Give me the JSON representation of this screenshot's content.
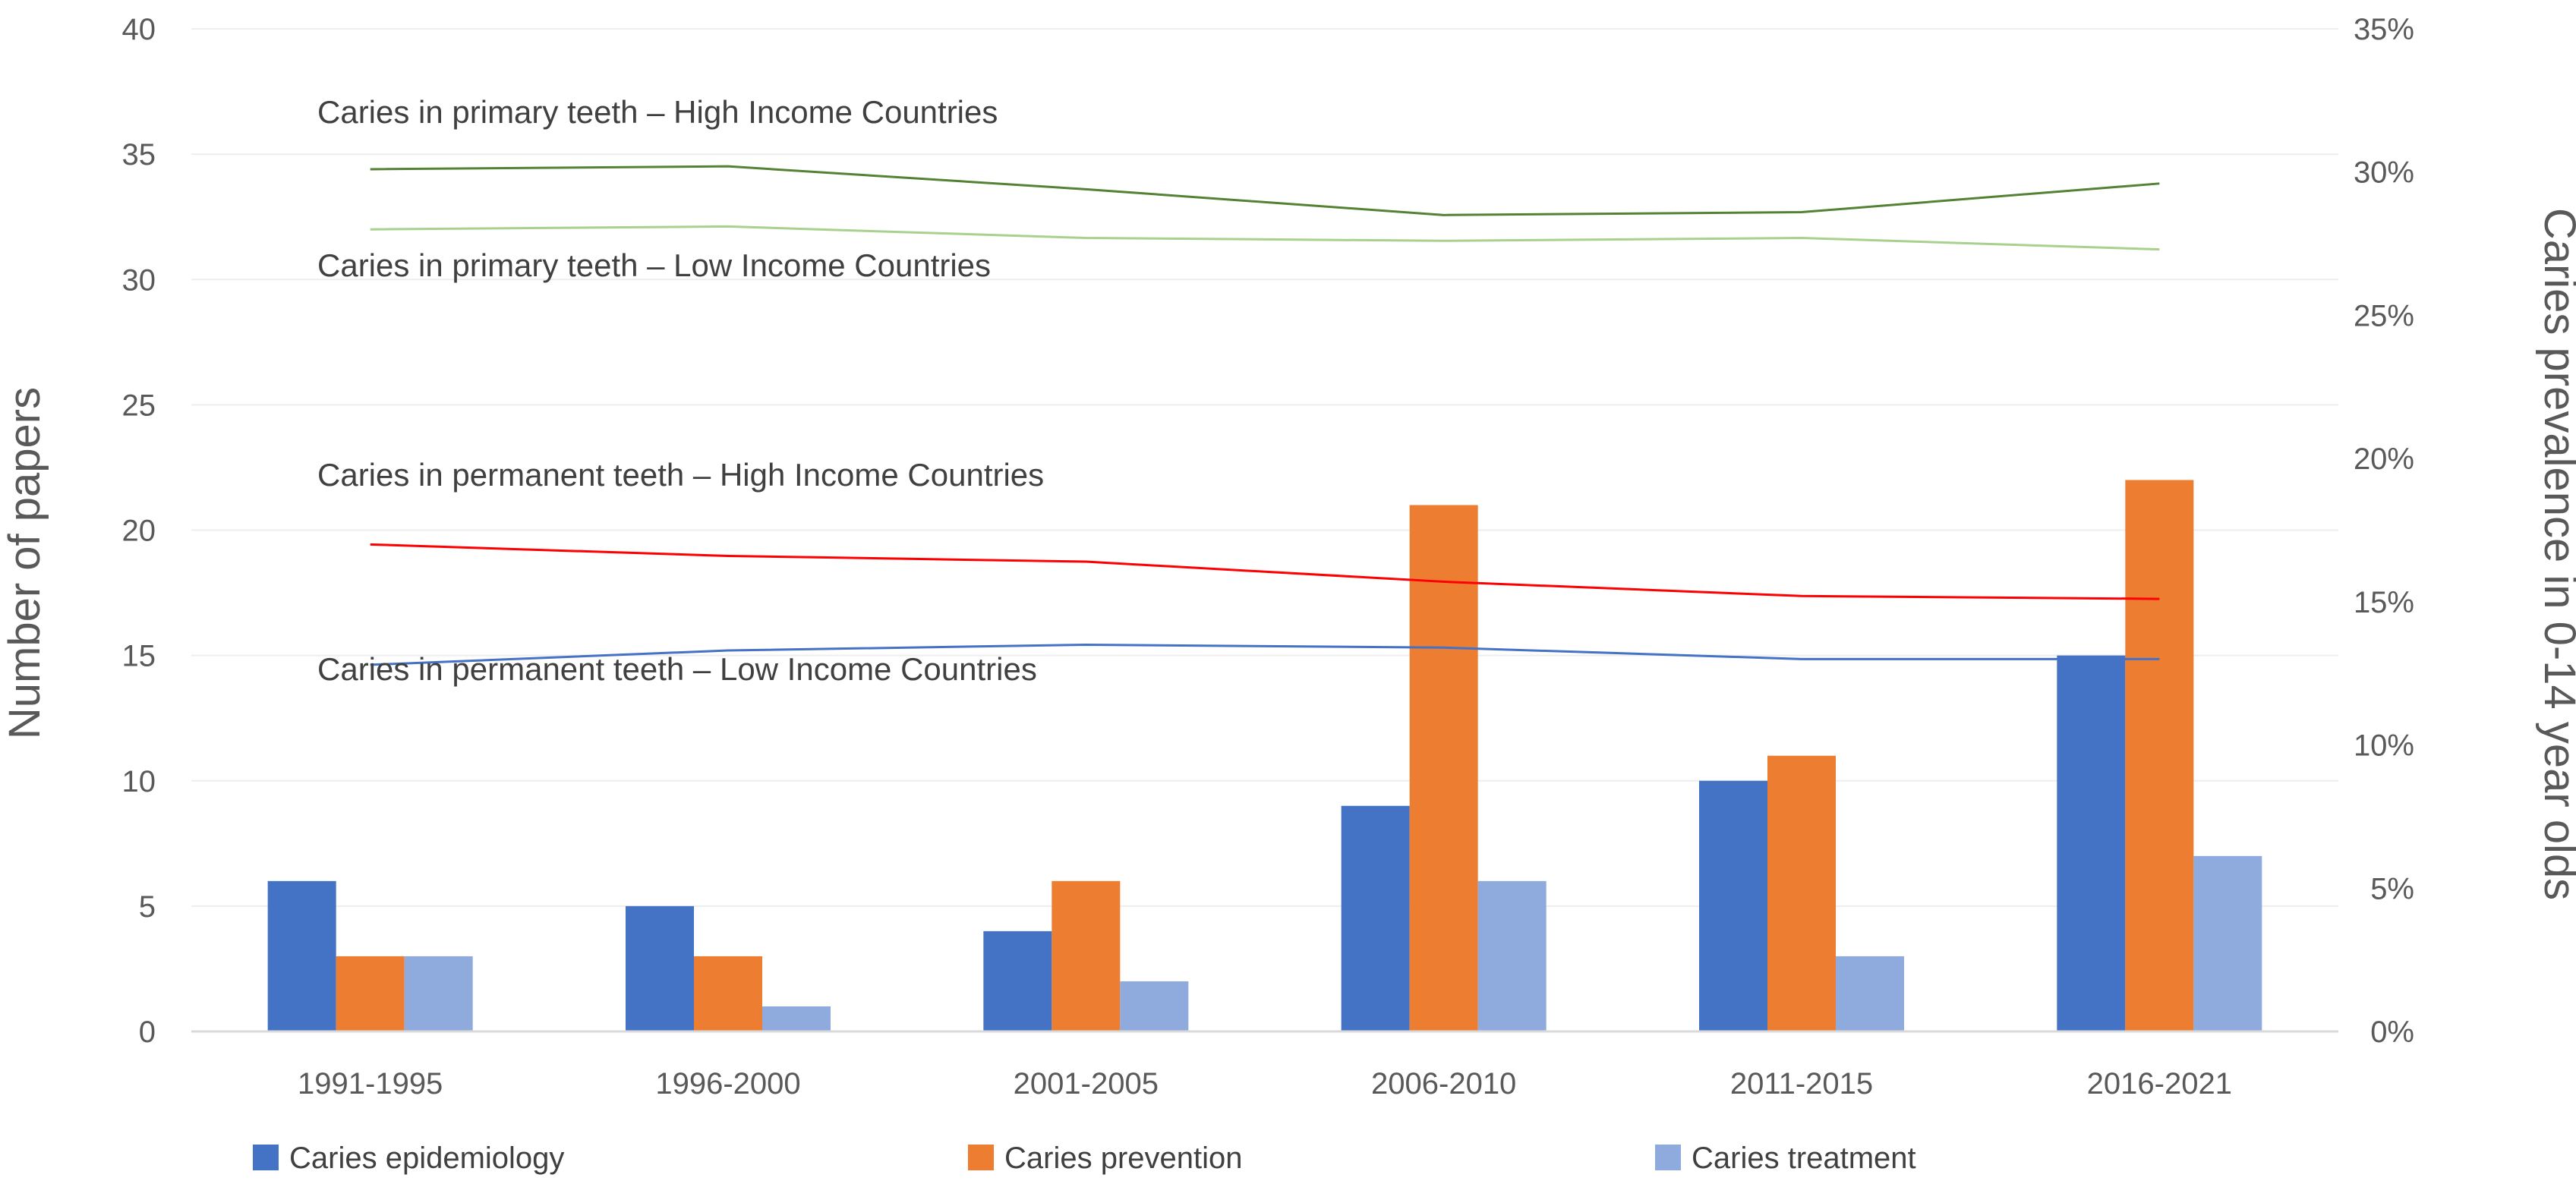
{
  "chart_data": {
    "type": "bar",
    "categories": [
      "1991-1995",
      "1996-2000",
      "2001-2005",
      "2006-2010",
      "2011-2015",
      "2016-2021"
    ],
    "series": [
      {
        "name": "Caries epidemiology",
        "values": [
          6,
          5,
          4,
          9,
          10,
          15
        ],
        "color": "#4472C4"
      },
      {
        "name": "Caries prevention",
        "values": [
          3,
          3,
          6,
          21,
          11,
          22
        ],
        "color": "#ED7D31"
      },
      {
        "name": "Caries treatment",
        "values": [
          3,
          1,
          2,
          6,
          3,
          7
        ],
        "color": "#8FAADC"
      }
    ],
    "lines": [
      {
        "name": "Caries in primary teeth – High Income Countries",
        "values": [
          30.1,
          30.2,
          29.4,
          28.5,
          28.6,
          29.6
        ],
        "color": "#548235"
      },
      {
        "name": "Caries in primary teeth – Low Income Countries",
        "values": [
          28.0,
          28.1,
          27.7,
          27.6,
          27.7,
          27.3
        ],
        "color": "#A9D18E"
      },
      {
        "name": "Caries in permanent teeth – High Income Countries",
        "values": [
          17.0,
          16.6,
          16.4,
          15.7,
          15.2,
          15.1
        ],
        "color": "#FF0000"
      },
      {
        "name": "Caries in permanent teeth – Low Income Countries",
        "values": [
          12.8,
          13.3,
          13.5,
          13.4,
          13.0,
          13.0
        ],
        "color": "#4472C4"
      }
    ],
    "y_left": {
      "label": "Number of papers",
      "min": 0,
      "max": 40,
      "ticks": [
        0,
        5,
        10,
        15,
        20,
        25,
        30,
        35,
        40
      ],
      "tick_labels": [
        "0",
        "5",
        "10",
        "15",
        "20",
        "25",
        "30",
        "35",
        "40"
      ]
    },
    "y_right": {
      "label": "Caries prevalence in 0-14 year olds",
      "min": 0,
      "max": 35,
      "ticks": [
        0,
        5,
        10,
        15,
        20,
        25,
        30,
        35
      ],
      "tick_labels": [
        "0%",
        "5%",
        "10%",
        "15%",
        "20%",
        "25%",
        "30%",
        "35%"
      ]
    },
    "grid": true,
    "legend_position": "bottom"
  }
}
